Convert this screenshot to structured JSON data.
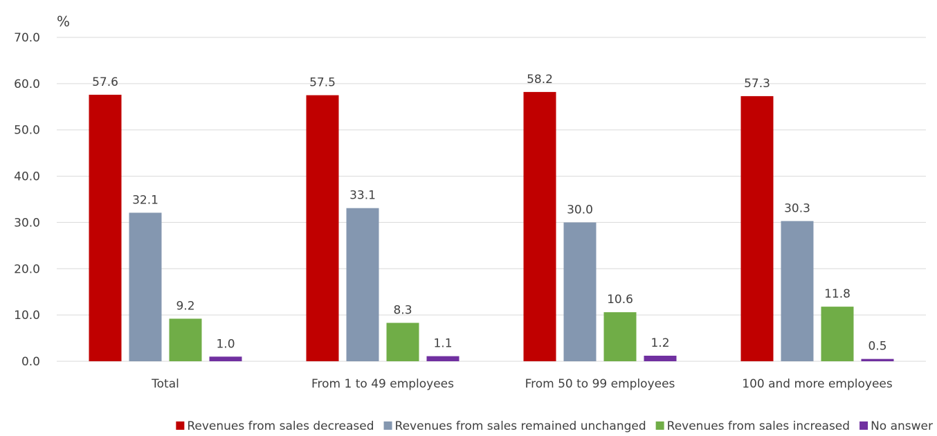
{
  "chart_data": {
    "type": "bar",
    "unit": "%",
    "categories": [
      "Total",
      "From 1 to 49 employees",
      "From 50 to 99 employees",
      "100 and more employees"
    ],
    "series": [
      {
        "name": "Revenues from sales decreased",
        "color": "#c00000",
        "values": [
          57.6,
          57.5,
          58.2,
          57.3
        ]
      },
      {
        "name": "Revenues from sales remained unchanged",
        "color": "#8497b0",
        "values": [
          32.1,
          33.1,
          30.0,
          30.3
        ]
      },
      {
        "name": "Revenues from sales increased",
        "color": "#70ad47",
        "values": [
          9.2,
          8.3,
          10.6,
          11.8
        ]
      },
      {
        "name": "No answer",
        "color": "#7030a0",
        "values": [
          1.0,
          1.1,
          1.2,
          0.5
        ]
      }
    ],
    "ylim": [
      0,
      70
    ],
    "yticks": [
      "0.0",
      "10.0",
      "20.0",
      "30.0",
      "40.0",
      "50.0",
      "60.0",
      "70.0"
    ],
    "grid": true,
    "legend": "bottom"
  }
}
